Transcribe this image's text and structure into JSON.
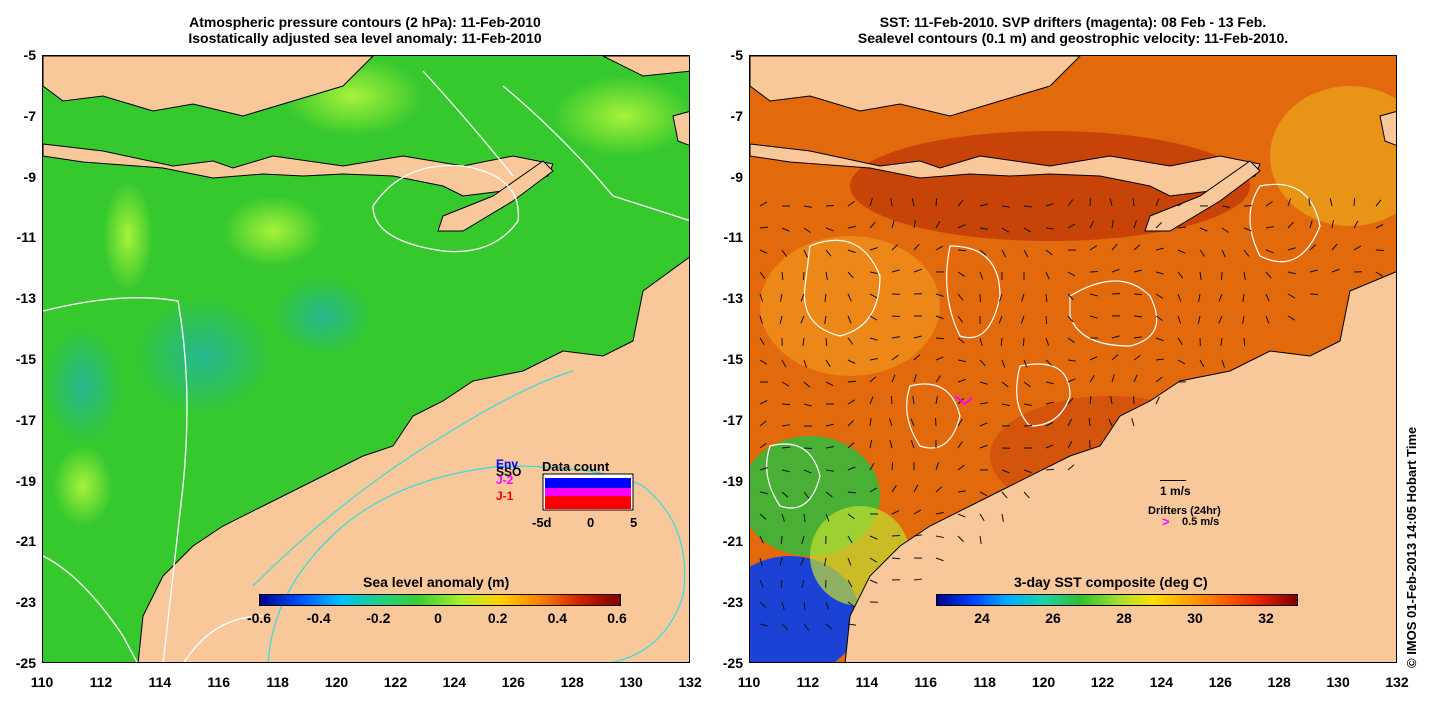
{
  "left_panel": {
    "title_line1": "Atmospheric pressure contours (2 hPa): 11-Feb-2010",
    "title_line2": "Isostatically adjusted sea level anomaly: 11-Feb-2010",
    "colorbar_label": "Sea level anomaly (m)",
    "colorbar_ticks": [
      "-0.6",
      "-0.4",
      "-0.2",
      "0",
      "0.2",
      "0.4",
      "0.6"
    ],
    "legend": {
      "series": [
        {
          "label": "Env",
          "color": "#0000ff"
        },
        {
          "label": "SSO",
          "color": "#000000"
        },
        {
          "label": "J-2",
          "color": "#ff00ff"
        },
        {
          "label": "J-1",
          "color": "#ff0000"
        }
      ],
      "title": "Data count",
      "ticks": [
        "-5d",
        "0",
        "5"
      ]
    }
  },
  "right_panel": {
    "title_line1": "SST: 11-Feb-2010. SVP drifters (magenta): 08 Feb - 13 Feb.",
    "title_line2": "Sealevel contours (0.1 m) and geostrophic velocity: 11-Feb-2010.",
    "colorbar_label": "3-day SST composite (deg C)",
    "colorbar_ticks": [
      "24",
      "26",
      "28",
      "30",
      "32"
    ],
    "scale_label": "1 m/s",
    "drifters_label": "Drifters (24hr)",
    "drifters_speed": "0.5 m/s"
  },
  "axes": {
    "y_ticks": [
      "-5",
      "-7",
      "-9",
      "-11",
      "-13",
      "-15",
      "-17",
      "-19",
      "-21",
      "-23",
      "-25"
    ],
    "x_ticks": [
      "110",
      "112",
      "114",
      "116",
      "118",
      "120",
      "122",
      "124",
      "126",
      "128",
      "130",
      "132"
    ]
  },
  "credit": "© IMOS 01-Feb-2013 14:05 Hobart Time",
  "colors": {
    "land": "#f9c89a",
    "sla_green": "#2fc82a",
    "sst_orange": "#e0620a"
  }
}
